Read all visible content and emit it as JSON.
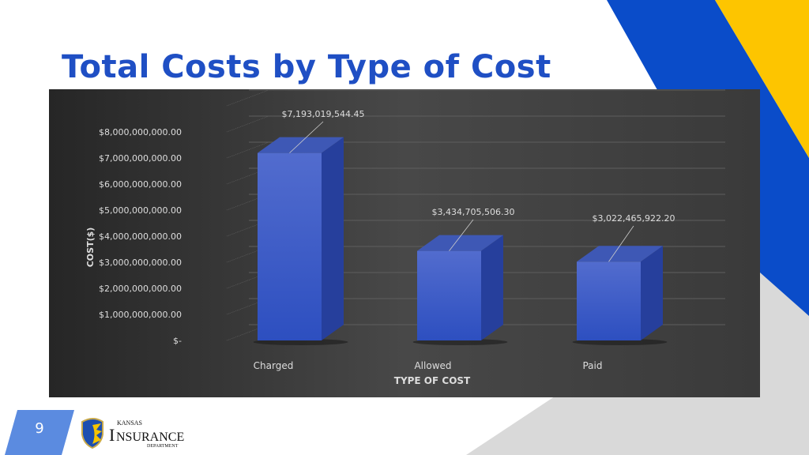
{
  "slide": {
    "title": "Total Costs by Type of Cost",
    "page_number": "9",
    "logo_text": "Kansas Insurance Department"
  },
  "colors": {
    "title": "#1f4fc4",
    "bar": "#3f5fcf",
    "accent_blue": "#0a4cc9",
    "accent_yellow": "#fdc500",
    "chart_bg": "#3a3a3a"
  },
  "chart_data": {
    "type": "bar",
    "categories": [
      "Charged",
      "Allowed",
      "Paid"
    ],
    "values": [
      7193019544.45,
      3434705506.3,
      3022465922.2
    ],
    "data_labels": [
      "$7,193,019,544.45",
      "$3,434,705,506.30",
      "$3,022,465,922.20"
    ],
    "xlabel": "TYPE OF COST",
    "ylabel": "COST($)",
    "ylim": [
      0,
      8000000000
    ],
    "yticks": [
      0,
      1000000000,
      2000000000,
      3000000000,
      4000000000,
      5000000000,
      6000000000,
      7000000000,
      8000000000
    ],
    "ytick_labels": [
      "$-",
      "$1,000,000,000.00",
      "$2,000,000,000.00",
      "$3,000,000,000.00",
      "$4,000,000,000.00",
      "$5,000,000,000.00",
      "$6,000,000,000.00",
      "$7,000,000,000.00",
      "$8,000,000,000.00"
    ],
    "grid": true,
    "style": "3d-column"
  }
}
